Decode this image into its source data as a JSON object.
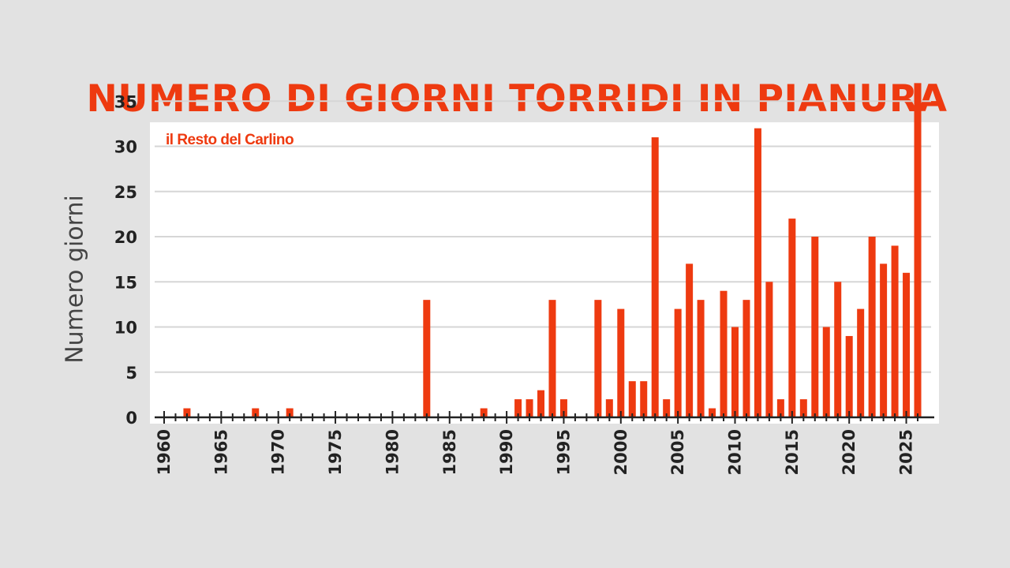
{
  "colors": {
    "bar": "#ee3a10",
    "title": "#ee3a10",
    "page_background": "#e2e2e2",
    "plot_background": "#ffffff",
    "grid": "#d6d6d6",
    "axis": "#222222"
  },
  "logo": {
    "text": "il Resto del Carlino"
  },
  "chart_data": {
    "type": "bar",
    "title": "NUMERO DI GIORNI TORRIDI IN PIANURA",
    "xlabel": "",
    "ylabel": "Numero giorni",
    "ylim": [
      0,
      37
    ],
    "yticks": [
      0,
      5,
      10,
      15,
      20,
      25,
      30,
      35
    ],
    "x_ticks": [
      1960,
      1965,
      1970,
      1975,
      1980,
      1985,
      1990,
      1995,
      2000,
      2005,
      2010,
      2015,
      2020,
      2025
    ],
    "grid": true,
    "categories": [
      1962,
      1968,
      1971,
      1983,
      1988,
      1991,
      1992,
      1993,
      1994,
      1995,
      1998,
      1999,
      2000,
      2001,
      2002,
      2003,
      2004,
      2005,
      2006,
      2007,
      2008,
      2009,
      2010,
      2011,
      2012,
      2013,
      2014,
      2015,
      2016,
      2017,
      2018,
      2019,
      2020,
      2021,
      2022,
      2023,
      2024,
      2025,
      2026
    ],
    "values": [
      1,
      1,
      1,
      13,
      1,
      2,
      2,
      3,
      13,
      2,
      13,
      2,
      12,
      4,
      4,
      31,
      2,
      12,
      17,
      13,
      1,
      14,
      10,
      13,
      32,
      15,
      2,
      22,
      2,
      20,
      10,
      15,
      9,
      12,
      20,
      17,
      19,
      16,
      37
    ]
  }
}
